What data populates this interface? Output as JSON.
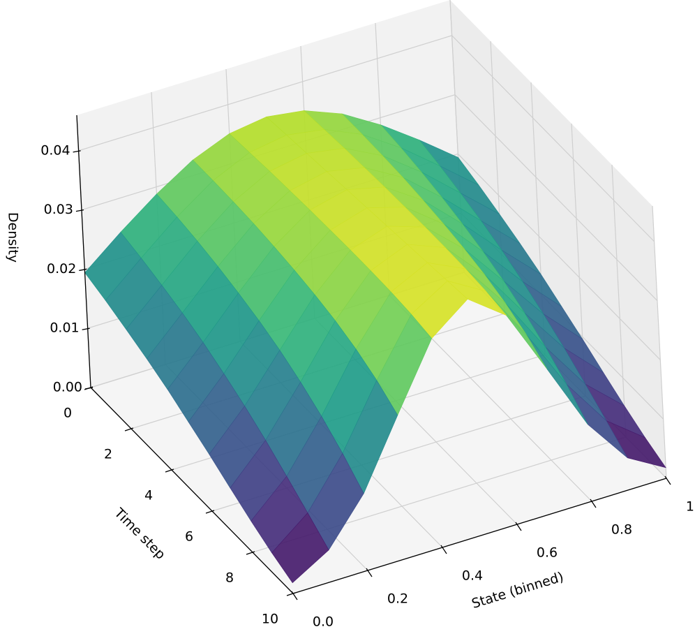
{
  "chart_data": {
    "type": "surface",
    "x_label": "State (binned)",
    "y_label": "Time step",
    "z_label": "Density",
    "x": [
      0,
      0.1,
      0.2,
      0.3,
      0.4,
      0.5,
      0.6,
      0.7,
      0.8,
      0.9,
      1
    ],
    "y": [
      0,
      1,
      2,
      3,
      4,
      5,
      6,
      7,
      8,
      9,
      10
    ],
    "z": [
      [
        0.0194,
        0.0243,
        0.0288,
        0.0326,
        0.0351,
        0.036,
        0.0351,
        0.0326,
        0.0288,
        0.0243,
        0.0194
      ],
      [
        0.0182,
        0.0234,
        0.0284,
        0.0326,
        0.0354,
        0.0364,
        0.0354,
        0.0326,
        0.0284,
        0.0234,
        0.0182
      ],
      [
        0.0168,
        0.0223,
        0.0278,
        0.0325,
        0.0357,
        0.0368,
        0.0357,
        0.0325,
        0.0278,
        0.0223,
        0.0168
      ],
      [
        0.0153,
        0.0211,
        0.027,
        0.0323,
        0.0359,
        0.0372,
        0.0359,
        0.0323,
        0.027,
        0.0211,
        0.0153
      ],
      [
        0.0136,
        0.0196,
        0.026,
        0.0319,
        0.0361,
        0.0376,
        0.0361,
        0.0319,
        0.026,
        0.0196,
        0.0136
      ],
      [
        0.0116,
        0.0178,
        0.0248,
        0.0314,
        0.0362,
        0.038,
        0.0362,
        0.0314,
        0.0248,
        0.0178,
        0.0116
      ],
      [
        0.0096,
        0.0158,
        0.0233,
        0.0307,
        0.0363,
        0.0384,
        0.0363,
        0.0307,
        0.0233,
        0.0158,
        0.0096
      ],
      [
        0.0074,
        0.0135,
        0.0214,
        0.0298,
        0.0363,
        0.0388,
        0.0363,
        0.0298,
        0.0214,
        0.0135,
        0.0074
      ],
      [
        0.0053,
        0.0109,
        0.0191,
        0.0285,
        0.0362,
        0.0392,
        0.0362,
        0.0285,
        0.0191,
        0.0109,
        0.0053
      ],
      [
        0.0034,
        0.0082,
        0.0163,
        0.0267,
        0.0359,
        0.0396,
        0.0359,
        0.0267,
        0.0163,
        0.0082,
        0.0034
      ],
      [
        0.0018,
        0.0054,
        0.013,
        0.0243,
        0.0353,
        0.04,
        0.0353,
        0.0243,
        0.013,
        0.0054,
        0.0018
      ]
    ],
    "xlim": [
      0,
      1
    ],
    "ylim": [
      0,
      10
    ],
    "zlim": [
      0,
      0.046
    ],
    "xticks": [
      {
        "value": 0,
        "label": "0.0"
      },
      0.2,
      0.4,
      0.6,
      0.8,
      {
        "value": 1,
        "label": "1.0"
      }
    ],
    "yticks": [
      0,
      2,
      4,
      6,
      8,
      10
    ],
    "zticks": [
      {
        "value": 0,
        "label": "0.00"
      },
      {
        "value": 0.01,
        "label": "0.01"
      },
      {
        "value": 0.02,
        "label": "0.02"
      },
      {
        "value": 0.03,
        "label": "0.03"
      },
      {
        "value": 0.04,
        "label": "0.04"
      }
    ],
    "colormap": "viridis",
    "grid": true
  }
}
